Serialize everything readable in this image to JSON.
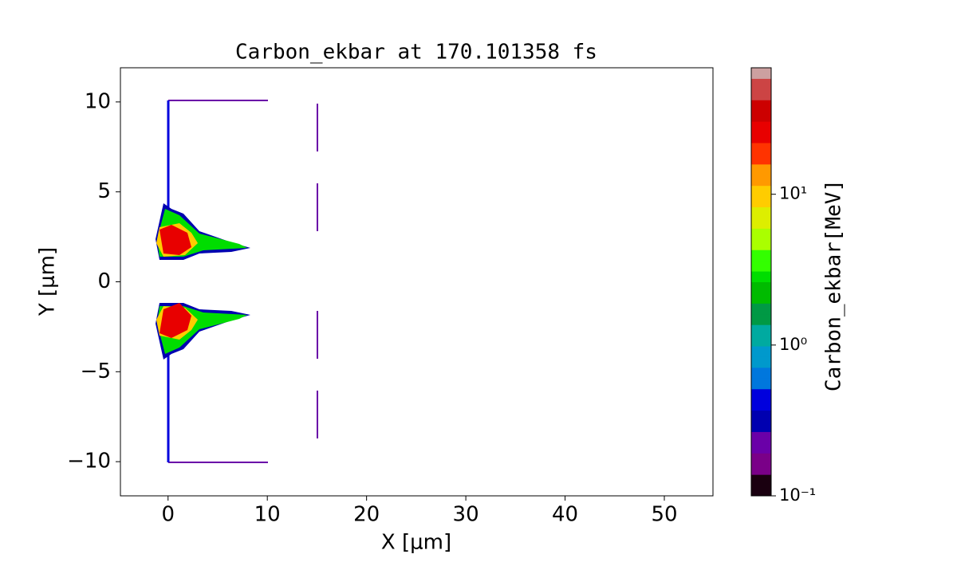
{
  "chart_data": {
    "type": "field",
    "title": "Carbon_ekbar at 170.101358 fs",
    "xlabel": "X  [μm]",
    "ylabel": "Y  [μm]",
    "xlim": [
      -4.8,
      54.9
    ],
    "ylim": [
      -11.9,
      11.9
    ],
    "xticks": [
      0,
      10,
      20,
      30,
      40,
      50
    ],
    "yticks": [
      {
        "value": -10,
        "label": "−10"
      },
      {
        "value": -5,
        "label": "−5"
      },
      0,
      5,
      10
    ],
    "colorbar": {
      "label": "Carbon_ekbar[MeV]",
      "log": true,
      "lim": [
        0.1,
        69
      ],
      "ticks": [
        {
          "value": 0.1,
          "label": "10⁻¹"
        },
        {
          "value": 1,
          "label": "10⁰"
        },
        {
          "value": 10,
          "label": "10¹"
        }
      ],
      "colormap": [
        "#1a0010",
        "#7a0088",
        "#6a00a8",
        "#0000b0",
        "#0000dd",
        "#0077dd",
        "#0099cc",
        "#00aaa0",
        "#009944",
        "#00bb00",
        "#00dd00",
        "#33ff00",
        "#aaff00",
        "#ddee00",
        "#ffcc00",
        "#ff9900",
        "#ff3300",
        "#e80000",
        "#cc0000",
        "#cc4444",
        "#cca0a0"
      ]
    }
  }
}
